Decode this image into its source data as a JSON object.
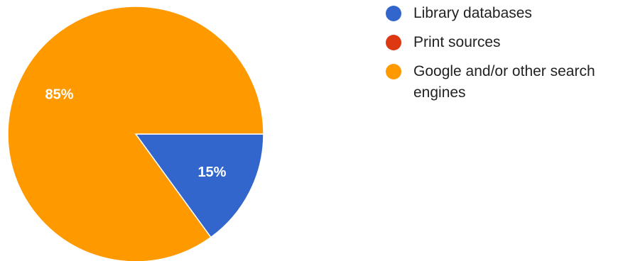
{
  "chart_data": {
    "type": "pie",
    "title": "",
    "slices": [
      {
        "label": "Library databases",
        "value": 15,
        "display": "15%",
        "color": "#3366cc"
      },
      {
        "label": "Print sources",
        "value": 0,
        "display": "",
        "color": "#dc3912"
      },
      {
        "label": "Google and/or other search engines",
        "value": 85,
        "display": "85%",
        "color": "#ff9900"
      }
    ],
    "legend_position": "right"
  }
}
